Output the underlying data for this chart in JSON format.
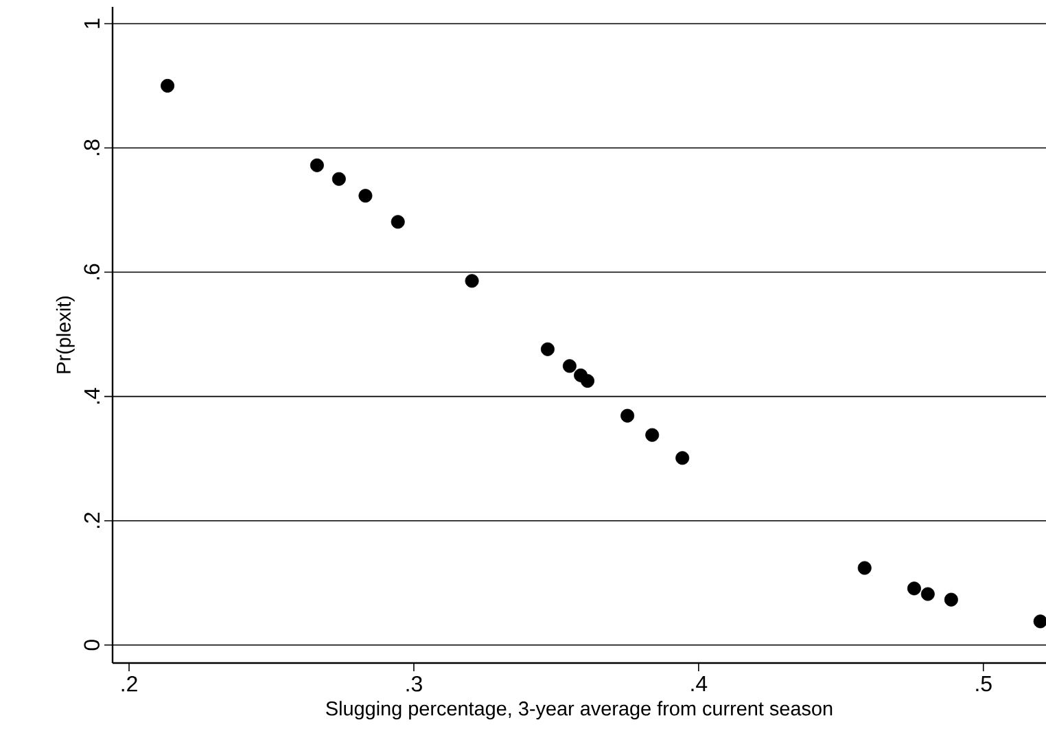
{
  "chart_data": {
    "type": "scatter",
    "xlabel": "Slugging percentage, 3-year average from current season",
    "ylabel": "Pr(plexit)",
    "x": [
      0.2135,
      0.266,
      0.2737,
      0.283,
      0.2944,
      0.3204,
      0.347,
      0.3547,
      0.3586,
      0.361,
      0.375,
      0.3837,
      0.3943,
      0.4583,
      0.4757,
      0.4805,
      0.4887,
      0.52
    ],
    "values": [
      0.9,
      0.772,
      0.75,
      0.723,
      0.681,
      0.586,
      0.476,
      0.449,
      0.434,
      0.425,
      0.369,
      0.338,
      0.301,
      0.124,
      0.091,
      0.082,
      0.073,
      0.038
    ],
    "color": "#000000",
    "marker": "circle",
    "grid": "y",
    "xlim": [
      0.1942,
      0.522
    ],
    "ylim": [
      -0.029,
      1.027
    ],
    "xticks": [
      {
        "value": 0.2,
        "label": ".2"
      },
      {
        "value": 0.3,
        "label": ".3"
      },
      {
        "value": 0.4,
        "label": ".4"
      },
      {
        "value": 0.5,
        "label": ".5"
      }
    ],
    "yticks": [
      0,
      {
        "value": 0.2,
        "label": ".2"
      },
      {
        "value": 0.4,
        "label": ".4"
      },
      {
        "value": 0.6,
        "label": ".6"
      },
      {
        "value": 0.8,
        "label": ".8"
      },
      1
    ]
  }
}
